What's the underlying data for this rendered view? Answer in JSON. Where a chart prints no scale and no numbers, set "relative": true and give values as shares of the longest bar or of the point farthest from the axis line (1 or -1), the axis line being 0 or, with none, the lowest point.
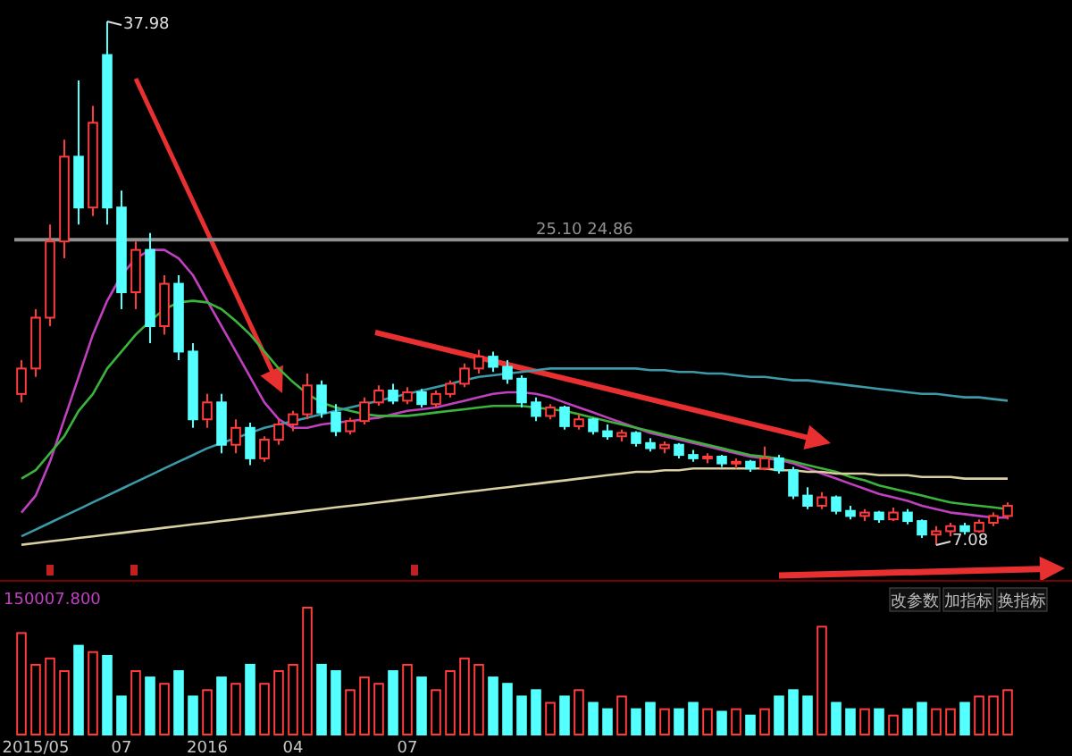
{
  "chart_data": [
    {
      "type": "candlestick",
      "categories": [
        null,
        null,
        null,
        null,
        null,
        null,
        null,
        null,
        null,
        null,
        null,
        null,
        null,
        null,
        null,
        null,
        null,
        null,
        null,
        null,
        null,
        null,
        null,
        null,
        null,
        null,
        null,
        null,
        null,
        null,
        null,
        null,
        null,
        null,
        null,
        null,
        null,
        null,
        null,
        null,
        null,
        null,
        null,
        null,
        null,
        null,
        null,
        null,
        null,
        null,
        null,
        null,
        null,
        null,
        null,
        null,
        null,
        null,
        null,
        null,
        null,
        null,
        null,
        null,
        null,
        null,
        null,
        null,
        null,
        null
      ],
      "ohlc": [
        [
          16,
          18,
          15.5,
          17.5
        ],
        [
          17.5,
          21,
          17,
          20.5
        ],
        [
          20.5,
          26,
          20,
          25
        ],
        [
          25,
          31,
          24,
          30
        ],
        [
          30,
          34.5,
          26,
          27
        ],
        [
          27,
          33,
          26.5,
          32
        ],
        [
          36,
          37.98,
          26,
          27
        ],
        [
          27,
          28,
          21,
          22
        ],
        [
          22,
          25,
          21,
          24.5
        ],
        [
          24.5,
          25.5,
          19,
          20
        ],
        [
          20,
          23,
          19.5,
          22.5
        ],
        [
          22.5,
          23,
          18,
          18.5
        ],
        [
          18.5,
          19,
          14,
          14.5
        ],
        [
          14.5,
          16,
          14,
          15.5
        ],
        [
          15.5,
          16,
          12.5,
          13
        ],
        [
          13,
          14.5,
          12.5,
          14
        ],
        [
          14,
          14.3,
          11.8,
          12.2
        ],
        [
          12.2,
          13.5,
          12,
          13.3
        ],
        [
          13.3,
          14.5,
          13,
          14.2
        ],
        [
          14.2,
          15,
          13.8,
          14.8
        ],
        [
          14.8,
          17.2,
          14.5,
          16.5
        ],
        [
          16.5,
          16.8,
          14.6,
          14.9
        ],
        [
          14.9,
          15.4,
          13.5,
          13.8
        ],
        [
          13.8,
          14.6,
          13.6,
          14.4
        ],
        [
          14.4,
          15.8,
          14.2,
          15.5
        ],
        [
          15.5,
          16.5,
          15.3,
          16.2
        ],
        [
          16.2,
          16.6,
          15.4,
          15.6
        ],
        [
          15.6,
          16.4,
          15.4,
          16.1
        ],
        [
          16.1,
          16.3,
          15.2,
          15.4
        ],
        [
          15.4,
          16.2,
          15.2,
          16
        ],
        [
          16,
          16.8,
          15.8,
          16.6
        ],
        [
          16.6,
          17.8,
          16.4,
          17.5
        ],
        [
          17.5,
          18.6,
          17.2,
          18.2
        ],
        [
          18.2,
          18.5,
          17.3,
          17.6
        ],
        [
          17.6,
          18,
          16.6,
          16.9
        ],
        [
          16.9,
          17.1,
          15.2,
          15.5
        ],
        [
          15.5,
          15.8,
          14.4,
          14.7
        ],
        [
          14.7,
          15.4,
          14.5,
          15.2
        ],
        [
          15.2,
          15.3,
          13.9,
          14.1
        ],
        [
          14.1,
          14.8,
          13.9,
          14.5
        ],
        [
          14.5,
          14.6,
          13.6,
          13.8
        ],
        [
          13.8,
          14.2,
          13.3,
          13.5
        ],
        [
          13.5,
          13.9,
          13.2,
          13.7
        ],
        [
          13.7,
          13.8,
          12.9,
          13.1
        ],
        [
          13.1,
          13.4,
          12.6,
          12.8
        ],
        [
          12.8,
          13.2,
          12.5,
          13
        ],
        [
          13,
          13.1,
          12.2,
          12.4
        ],
        [
          12.4,
          12.7,
          12,
          12.2
        ],
        [
          12.2,
          12.5,
          11.9,
          12.3
        ],
        [
          12.3,
          12.4,
          11.7,
          11.9
        ],
        [
          11.9,
          12.2,
          11.6,
          12
        ],
        [
          12,
          12.1,
          11.4,
          11.6
        ],
        [
          11.6,
          12.9,
          11.5,
          12.2
        ],
        [
          12.2,
          12.4,
          11.3,
          11.5
        ],
        [
          11.5,
          11.7,
          9.8,
          10
        ],
        [
          10,
          10.5,
          9.2,
          9.4
        ],
        [
          9.4,
          10.2,
          9.2,
          9.9
        ],
        [
          9.9,
          10,
          8.9,
          9.1
        ],
        [
          9.1,
          9.4,
          8.6,
          8.8
        ],
        [
          8.8,
          9.2,
          8.5,
          9
        ],
        [
          9,
          9.1,
          8.4,
          8.6
        ],
        [
          8.6,
          9.3,
          8.5,
          9
        ],
        [
          9,
          9.2,
          8.3,
          8.5
        ],
        [
          8.5,
          8.6,
          7.5,
          7.7
        ],
        [
          7.7,
          8.2,
          7.08,
          7.9
        ],
        [
          7.9,
          8.4,
          7.6,
          8.2
        ],
        [
          8.2,
          8.4,
          7.7,
          7.9
        ],
        [
          7.9,
          8.6,
          7.8,
          8.4
        ],
        [
          8.4,
          9,
          8.2,
          8.8
        ],
        [
          8.8,
          9.6,
          8.6,
          9.4
        ]
      ],
      "colors": [
        "#ff3c3c",
        "#ff3c3c",
        "#ff3c3c",
        "#ff3c3c",
        "#54ffff",
        "#ff3c3c",
        "#54ffff",
        "#54ffff",
        "#ff3c3c",
        "#54ffff",
        "#ff3c3c",
        "#54ffff",
        "#54ffff",
        "#ff3c3c",
        "#54ffff",
        "#ff3c3c",
        "#54ffff",
        "#ff3c3c",
        "#ff3c3c",
        "#ff3c3c",
        "#ff3c3c",
        "#54ffff",
        "#54ffff",
        "#ff3c3c",
        "#ff3c3c",
        "#ff3c3c",
        "#54ffff",
        "#ff3c3c",
        "#54ffff",
        "#ff3c3c",
        "#ff3c3c",
        "#ff3c3c",
        "#ff3c3c",
        "#54ffff",
        "#54ffff",
        "#54ffff",
        "#54ffff",
        "#ff3c3c",
        "#54ffff",
        "#ff3c3c",
        "#54ffff",
        "#54ffff",
        "#ff3c3c",
        "#54ffff",
        "#54ffff",
        "#ff3c3c",
        "#54ffff",
        "#54ffff",
        "#ff3c3c",
        "#54ffff",
        "#ff3c3c",
        "#54ffff",
        "#ff3c3c",
        "#54ffff",
        "#54ffff",
        "#54ffff",
        "#ff3c3c",
        "#54ffff",
        "#54ffff",
        "#ff3c3c",
        "#54ffff",
        "#ff3c3c",
        "#54ffff",
        "#54ffff",
        "#ff3c3c",
        "#ff3c3c",
        "#54ffff",
        "#ff3c3c",
        "#ff3c3c",
        "#ff3c3c"
      ],
      "series": [
        {
          "type": "line",
          "color": "#c040c0",
          "values": [
            9,
            10,
            12,
            14.5,
            17,
            19.5,
            21.5,
            23,
            24,
            24.5,
            24.5,
            24,
            23,
            21.5,
            20,
            18.5,
            17,
            15.5,
            14.5,
            14,
            14,
            14.2,
            14.3,
            14.4,
            14.5,
            14.6,
            14.8,
            15,
            15.1,
            15.2,
            15.4,
            15.6,
            15.8,
            16,
            16.1,
            16.1,
            16,
            15.8,
            15.5,
            15.2,
            14.9,
            14.6,
            14.3,
            14,
            13.7,
            13.5,
            13.3,
            13.1,
            12.9,
            12.7,
            12.5,
            12.3,
            12.2,
            12.1,
            11.9,
            11.6,
            11.3,
            11,
            10.7,
            10.4,
            10.1,
            9.9,
            9.7,
            9.4,
            9.2,
            9,
            8.9,
            8.8,
            8.7,
            8.7
          ]
        },
        {
          "type": "line",
          "color": "#3cb43c",
          "values": [
            11,
            11.5,
            12.5,
            13.5,
            15,
            16,
            17.5,
            18.5,
            19.5,
            20.3,
            21,
            21.4,
            21.5,
            21.4,
            21,
            20.3,
            19.5,
            18.5,
            17.5,
            16.7,
            16,
            15.5,
            15.2,
            15,
            14.8,
            14.7,
            14.7,
            14.7,
            14.8,
            14.9,
            15,
            15.1,
            15.2,
            15.3,
            15.3,
            15.3,
            15.2,
            15.1,
            15,
            14.8,
            14.6,
            14.4,
            14.2,
            14,
            13.8,
            13.6,
            13.4,
            13.2,
            13,
            12.8,
            12.6,
            12.4,
            12.3,
            12.2,
            12,
            11.8,
            11.6,
            11.4,
            11.1,
            10.9,
            10.6,
            10.4,
            10.2,
            10,
            9.8,
            9.6,
            9.5,
            9.4,
            9.3,
            9.2
          ]
        },
        {
          "type": "line",
          "color": "#3c9aa8",
          "values": [
            7.6,
            8,
            8.4,
            8.8,
            9.2,
            9.6,
            10,
            10.4,
            10.8,
            11.2,
            11.6,
            12,
            12.4,
            12.8,
            13.1,
            13.4,
            13.7,
            14,
            14.2,
            14.4,
            14.6,
            14.8,
            15,
            15.2,
            15.4,
            15.6,
            15.8,
            16,
            16.2,
            16.4,
            16.6,
            16.8,
            17,
            17.1,
            17.2,
            17.3,
            17.4,
            17.5,
            17.5,
            17.5,
            17.5,
            17.5,
            17.5,
            17.5,
            17.4,
            17.4,
            17.3,
            17.3,
            17.2,
            17.2,
            17.1,
            17,
            17,
            16.9,
            16.8,
            16.8,
            16.7,
            16.6,
            16.5,
            16.4,
            16.3,
            16.2,
            16.1,
            16,
            16,
            15.9,
            15.8,
            15.8,
            15.7,
            15.6
          ]
        },
        {
          "type": "line",
          "color": "#d8d0a0",
          "values": [
            7.1,
            7.2,
            7.3,
            7.4,
            7.5,
            7.6,
            7.7,
            7.8,
            7.9,
            8,
            8.1,
            8.2,
            8.3,
            8.4,
            8.5,
            8.6,
            8.7,
            8.8,
            8.9,
            9,
            9.1,
            9.2,
            9.3,
            9.4,
            9.5,
            9.6,
            9.7,
            9.8,
            9.9,
            10,
            10.1,
            10.2,
            10.3,
            10.4,
            10.5,
            10.6,
            10.7,
            10.8,
            10.9,
            11,
            11.1,
            11.2,
            11.3,
            11.4,
            11.4,
            11.5,
            11.5,
            11.6,
            11.6,
            11.6,
            11.6,
            11.6,
            11.6,
            11.5,
            11.5,
            11.4,
            11.4,
            11.3,
            11.3,
            11.3,
            11.2,
            11.2,
            11.2,
            11.1,
            11.1,
            11.1,
            11,
            11,
            11,
            11
          ]
        }
      ],
      "ref_lines": [
        {
          "axis": "y",
          "value": 25.1,
          "label": "25.10 24.86",
          "color": "#909090"
        }
      ],
      "annotations": [
        "37.98",
        "7.08"
      ]
    },
    {
      "type": "bar",
      "relative": true,
      "categories": [
        null,
        "2015/05",
        null,
        null,
        null,
        null,
        null,
        "07",
        null,
        null,
        null,
        null,
        null,
        "2016",
        null,
        null,
        null,
        null,
        null,
        "04",
        null,
        null,
        null,
        null,
        null,
        null,
        null,
        "07",
        null,
        null,
        null,
        null,
        null,
        null,
        null,
        null,
        null,
        null,
        null,
        null,
        null,
        null,
        null,
        null,
        null,
        null,
        null,
        null,
        null,
        null,
        null,
        null,
        null,
        null,
        null,
        null,
        null,
        null,
        null,
        null,
        null,
        null,
        null,
        null,
        null,
        null,
        null,
        null,
        null,
        null
      ],
      "values": [
        0.8,
        0.55,
        0.6,
        0.5,
        0.7,
        0.65,
        0.62,
        0.3,
        0.5,
        0.45,
        0.4,
        0.5,
        0.3,
        0.35,
        0.45,
        0.4,
        0.55,
        0.4,
        0.5,
        0.55,
        1,
        0.55,
        0.5,
        0.35,
        0.45,
        0.4,
        0.5,
        0.55,
        0.45,
        0.35,
        0.5,
        0.6,
        0.55,
        0.45,
        0.4,
        0.3,
        0.35,
        0.25,
        0.3,
        0.35,
        0.25,
        0.2,
        0.3,
        0.2,
        0.25,
        0.2,
        0.2,
        0.25,
        0.2,
        0.18,
        0.2,
        0.15,
        0.2,
        0.3,
        0.35,
        0.3,
        0.85,
        0.25,
        0.2,
        0.2,
        0.2,
        0.15,
        0.2,
        0.25,
        0.2,
        0.2,
        0.25,
        0.3,
        0.3,
        0.35
      ],
      "colors": [
        "#ff3c3c",
        "#ff3c3c",
        "#ff3c3c",
        "#ff3c3c",
        "#54ffff",
        "#ff3c3c",
        "#54ffff",
        "#54ffff",
        "#ff3c3c",
        "#54ffff",
        "#ff3c3c",
        "#54ffff",
        "#54ffff",
        "#ff3c3c",
        "#54ffff",
        "#ff3c3c",
        "#54ffff",
        "#ff3c3c",
        "#ff3c3c",
        "#ff3c3c",
        "#ff3c3c",
        "#54ffff",
        "#54ffff",
        "#ff3c3c",
        "#ff3c3c",
        "#ff3c3c",
        "#54ffff",
        "#ff3c3c",
        "#54ffff",
        "#ff3c3c",
        "#ff3c3c",
        "#ff3c3c",
        "#ff3c3c",
        "#54ffff",
        "#54ffff",
        "#54ffff",
        "#54ffff",
        "#ff3c3c",
        "#54ffff",
        "#ff3c3c",
        "#54ffff",
        "#54ffff",
        "#ff3c3c",
        "#54ffff",
        "#54ffff",
        "#ff3c3c",
        "#54ffff",
        "#54ffff",
        "#ff3c3c",
        "#54ffff",
        "#ff3c3c",
        "#54ffff",
        "#ff3c3c",
        "#54ffff",
        "#54ffff",
        "#54ffff",
        "#ff3c3c",
        "#54ffff",
        "#54ffff",
        "#ff3c3c",
        "#54ffff",
        "#ff3c3c",
        "#54ffff",
        "#54ffff",
        "#ff3c3c",
        "#ff3c3c",
        "#54ffff",
        "#ff3c3c",
        "#ff3c3c",
        "#ff3c3c"
      ],
      "annotations": [
        "150007.800",
        "改参数",
        "加指标",
        "换指标"
      ]
    }
  ]
}
